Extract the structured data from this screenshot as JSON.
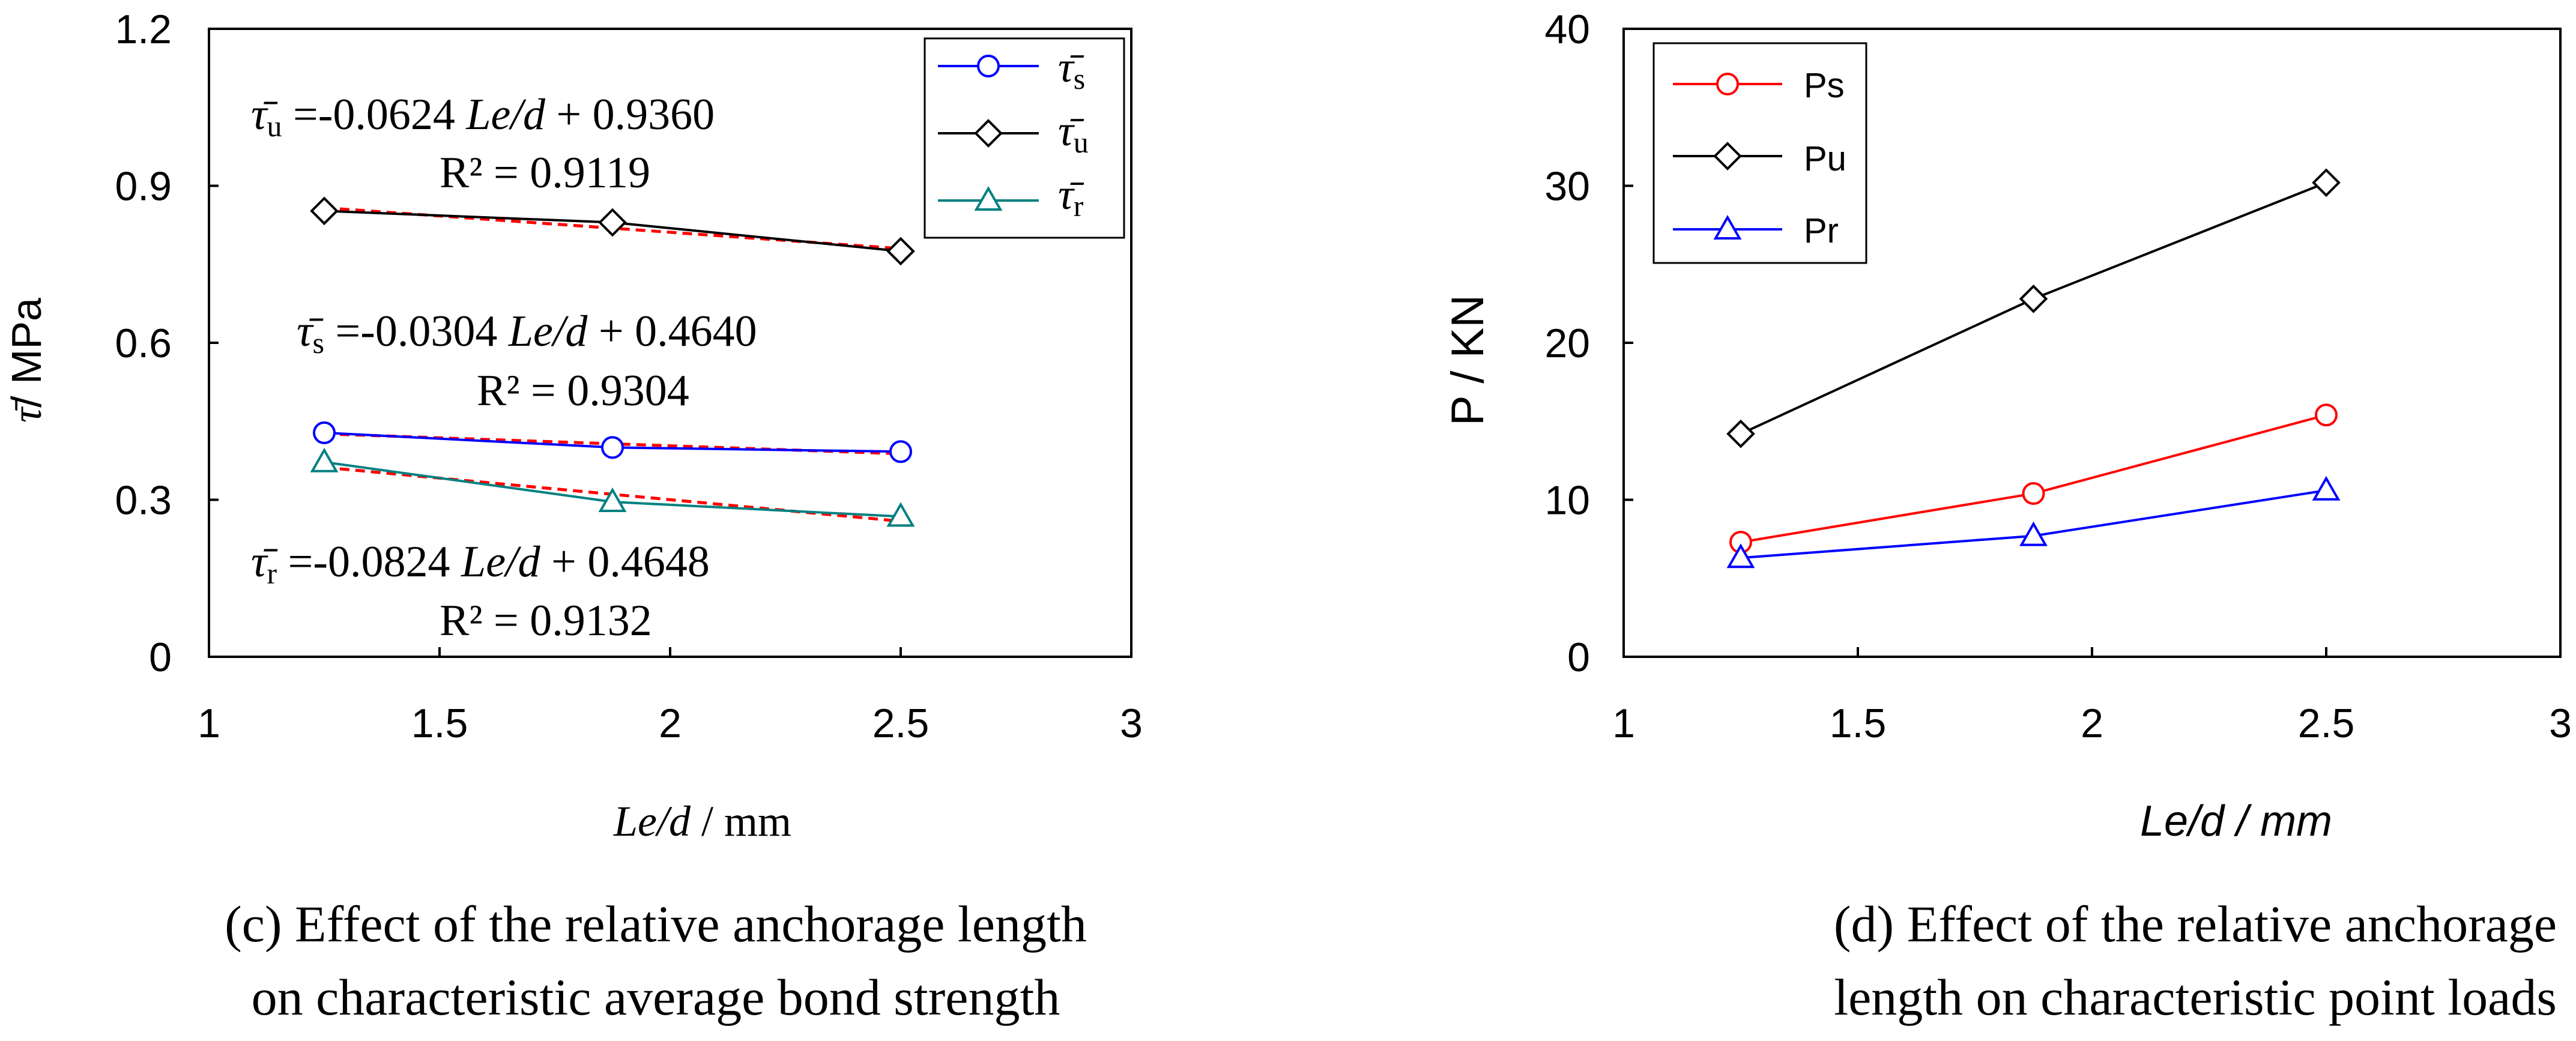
{
  "chart_data": [
    {
      "type": "line",
      "title": "",
      "xlabel_italic": "Le/d",
      "xlabel_rest": " / mm",
      "ylabel_symbol": "τ̄",
      "ylabel_rest": "/ MPa",
      "xlim": [
        1,
        3
      ],
      "ylim": [
        0,
        1.2
      ],
      "xticks": [
        1,
        1.5,
        2,
        2.5,
        3
      ],
      "xtick_labels": [
        "1",
        "1.5",
        "2",
        "2.5",
        "3"
      ],
      "yticks": [
        0,
        0.3,
        0.6,
        0.9,
        1.2
      ],
      "ytick_labels": [
        "0",
        "0.3",
        "0.6",
        "0.9",
        "1.2"
      ],
      "grid": false,
      "legend_position": "top-right",
      "x": [
        1.25,
        1.875,
        2.5
      ],
      "series": [
        {
          "name": "τ̄",
          "subscript": "s",
          "color": "#0000ff",
          "marker": "circle",
          "values": [
            0.428,
            0.4,
            0.392
          ]
        },
        {
          "name": "τ̄",
          "subscript": "u",
          "color": "#000000",
          "marker": "diamond",
          "values": [
            0.852,
            0.83,
            0.775
          ]
        },
        {
          "name": "τ̄",
          "subscript": "r",
          "color": "#008080",
          "marker": "triangle",
          "values": [
            0.372,
            0.296,
            0.268
          ]
        }
      ],
      "fits": [
        {
          "color": "#ff0000",
          "x": [
            1.25,
            2.5
          ],
          "values": [
            0.858,
            0.78
          ]
        },
        {
          "color": "#ff0000",
          "x": [
            1.25,
            2.5
          ],
          "values": [
            0.426,
            0.388
          ]
        },
        {
          "color": "#ff0000",
          "x": [
            1.25,
            2.5
          ],
          "values": [
            0.362,
            0.259
          ]
        }
      ],
      "annotations": [
        {
          "symbol": "τ̄",
          "sub": "u",
          "eq_a": " =-0.0624 ",
          "eq_var": "Le/d",
          "eq_b": " + 0.9360",
          "r2": "R² = 0.9119"
        },
        {
          "symbol": "τ̄",
          "sub": "s",
          "eq_a": " =-0.0304 ",
          "eq_var": "Le/d",
          "eq_b": " + 0.4640",
          "r2": "R² = 0.9304"
        },
        {
          "symbol": "τ̄",
          "sub": "r",
          "eq_a": " =-0.0824 ",
          "eq_var": "Le/d",
          "eq_b": " + 0.4648",
          "r2": "R² = 0.9132"
        }
      ],
      "caption": [
        "(c) Effect of the relative anchorage   length",
        "on characteristic average bond strength"
      ]
    },
    {
      "type": "line",
      "title": "",
      "xlabel": "Le/d / mm",
      "ylabel": "P / KN",
      "xlim": [
        1,
        3
      ],
      "ylim": [
        0,
        40
      ],
      "xticks": [
        1,
        1.5,
        2,
        2.5,
        3
      ],
      "xtick_labels": [
        "1",
        "1.5",
        "2",
        "2.5",
        "3"
      ],
      "yticks": [
        0,
        10,
        20,
        30,
        40
      ],
      "ytick_labels": [
        "0",
        "10",
        "20",
        "30",
        "40"
      ],
      "grid": false,
      "legend_position": "top-left",
      "x": [
        1.25,
        1.875,
        2.5
      ],
      "series": [
        {
          "name": "Ps",
          "color": "#ff0000",
          "marker": "circle",
          "values": [
            7.3,
            10.4,
            15.4
          ]
        },
        {
          "name": "Pu",
          "color": "#000000",
          "marker": "diamond",
          "values": [
            14.2,
            22.8,
            30.2
          ]
        },
        {
          "name": "Pr",
          "color": "#0000ff",
          "marker": "triangle",
          "values": [
            6.3,
            7.7,
            10.6
          ]
        }
      ],
      "caption": [
        "(d) Effect of the relative anchorage",
        "length on characteristic point loads"
      ]
    }
  ]
}
